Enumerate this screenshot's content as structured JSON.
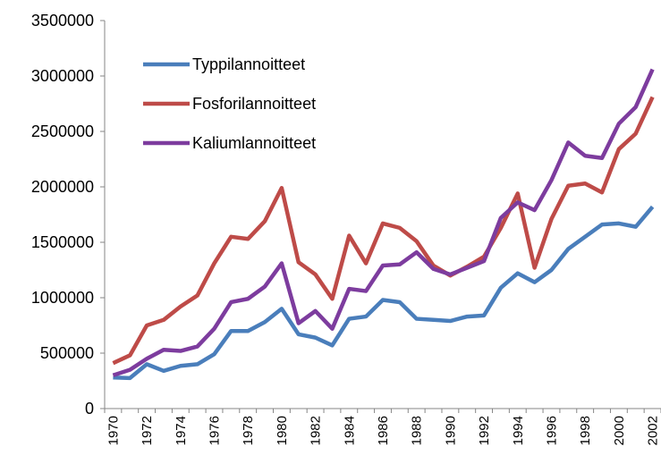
{
  "chart_data": {
    "type": "line",
    "categories": [
      "1970",
      null,
      "1972",
      null,
      "1974",
      null,
      "1976",
      null,
      "1978",
      null,
      "1980",
      null,
      "1982",
      null,
      "1984",
      null,
      "1986",
      null,
      "1988",
      null,
      "1990",
      null,
      "1992",
      null,
      "1994",
      null,
      "1996",
      null,
      "1998",
      null,
      "2000",
      null,
      "2002"
    ],
    "series": [
      {
        "name": "Typpilannoitteet",
        "color": "#4a7ebb",
        "values": [
          280000,
          275000,
          400000,
          340000,
          385000,
          400000,
          490000,
          700000,
          700000,
          780000,
          900000,
          670000,
          640000,
          570000,
          810000,
          830000,
          980000,
          960000,
          810000,
          800000,
          790000,
          830000,
          840000,
          1090000,
          1220000,
          1140000,
          1250000,
          1440000,
          1550000,
          1660000,
          1670000,
          1640000,
          1820000
        ]
      },
      {
        "name": "Fosforilannoitteet",
        "color": "#be4b48",
        "values": [
          410000,
          480000,
          750000,
          800000,
          920000,
          1020000,
          1310000,
          1550000,
          1530000,
          1690000,
          1990000,
          1320000,
          1210000,
          990000,
          1560000,
          1310000,
          1670000,
          1630000,
          1510000,
          1290000,
          1200000,
          1280000,
          1370000,
          1630000,
          1940000,
          1270000,
          1710000,
          2010000,
          2030000,
          1950000,
          2340000,
          2480000,
          2810000
        ]
      },
      {
        "name": "Kaliumlannoitteet",
        "color": "#7d3c9e",
        "values": [
          300000,
          350000,
          450000,
          530000,
          520000,
          560000,
          720000,
          960000,
          990000,
          1100000,
          1310000,
          770000,
          880000,
          720000,
          1080000,
          1060000,
          1290000,
          1300000,
          1410000,
          1260000,
          1210000,
          1270000,
          1330000,
          1720000,
          1860000,
          1790000,
          2060000,
          2400000,
          2280000,
          2260000,
          2570000,
          2720000,
          3060000
        ]
      }
    ],
    "ylim": [
      0,
      3500000
    ],
    "yticks": [
      0,
      500000,
      1000000,
      1500000,
      2000000,
      2500000,
      3000000,
      3500000
    ],
    "grid": false,
    "legend": "upper left"
  }
}
